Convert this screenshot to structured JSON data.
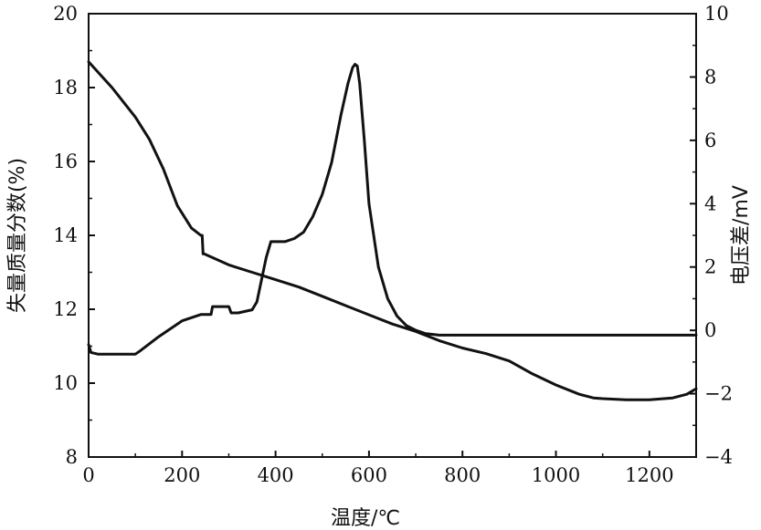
{
  "chart_data": {
    "type": "line",
    "xlabel": "温度/℃",
    "ylabel_left": "失量质量分数(%)",
    "ylabel_right": "电压差/mV",
    "x_ticks": [
      "0",
      "200",
      "400",
      "600",
      "800",
      "1000",
      "1200"
    ],
    "y_left_ticks": [
      "8",
      "10",
      "12",
      "14",
      "16",
      "18",
      "20"
    ],
    "y_right_ticks": [
      "−4",
      "−2",
      "0",
      "2",
      "4",
      "6",
      "8",
      "10"
    ],
    "xlim": [
      0,
      1300
    ],
    "ylim_left": [
      8,
      20
    ],
    "ylim_right": [
      -4,
      10
    ],
    "grid": false,
    "line_color": "#111111",
    "series": [
      {
        "axis": "left",
        "x": [
          0,
          50,
          100,
          130,
          160,
          190,
          220,
          240,
          243,
          245,
          247,
          300,
          350,
          400,
          450,
          500,
          550,
          600,
          650,
          700,
          750,
          800,
          850,
          900,
          950,
          1000,
          1050,
          1080,
          1100,
          1150,
          1200,
          1250,
          1280,
          1300
        ],
        "y": [
          18.7,
          18.0,
          17.2,
          16.6,
          15.8,
          14.8,
          14.2,
          14.0,
          14.0,
          13.5,
          13.5,
          13.2,
          13.0,
          12.8,
          12.6,
          12.35,
          12.1,
          11.85,
          11.6,
          11.4,
          11.15,
          10.95,
          10.8,
          10.6,
          10.25,
          9.95,
          9.7,
          9.6,
          9.58,
          9.55,
          9.55,
          9.6,
          9.7,
          9.85
        ]
      },
      {
        "axis": "right",
        "x": [
          0,
          5,
          20,
          50,
          100,
          110,
          150,
          200,
          240,
          250,
          255,
          260,
          262,
          265,
          270,
          290,
          300,
          305,
          310,
          320,
          350,
          360,
          370,
          380,
          390,
          400,
          420,
          440,
          460,
          480,
          500,
          520,
          540,
          555,
          565,
          570,
          575,
          580,
          590,
          600,
          620,
          640,
          660,
          680,
          700,
          720,
          750,
          800,
          900,
          1000,
          1100,
          1200,
          1300
        ],
        "y": [
          -0.45,
          -0.7,
          -0.75,
          -0.75,
          -0.75,
          -0.65,
          -0.2,
          0.3,
          0.5,
          0.5,
          0.5,
          0.5,
          0.5,
          0.75,
          0.75,
          0.75,
          0.75,
          0.55,
          0.55,
          0.55,
          0.65,
          0.9,
          1.6,
          2.3,
          2.8,
          2.8,
          2.8,
          2.9,
          3.1,
          3.6,
          4.3,
          5.3,
          6.8,
          7.8,
          8.3,
          8.4,
          8.35,
          7.8,
          6.0,
          4.0,
          2.0,
          1.0,
          0.45,
          0.15,
          0.0,
          -0.1,
          -0.15,
          -0.15,
          -0.15,
          -0.15,
          -0.15,
          -0.15,
          -0.15
        ]
      }
    ]
  }
}
